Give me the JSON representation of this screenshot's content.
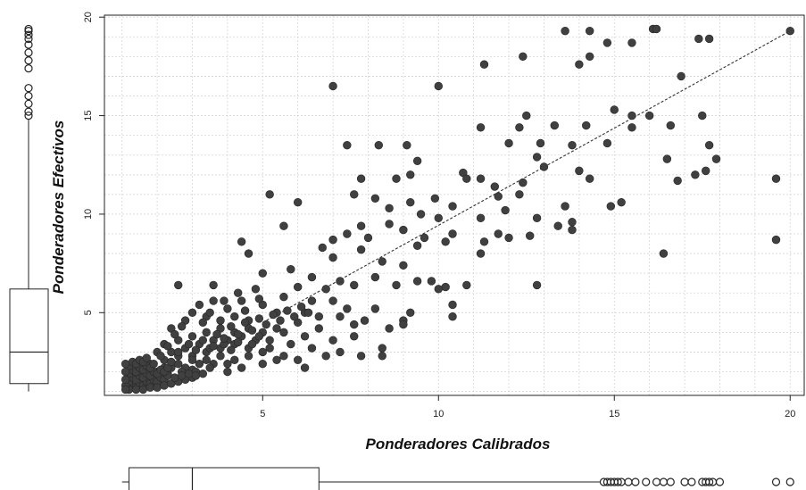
{
  "chart_data": {
    "type": "scatter",
    "title": "",
    "xlabel": "Ponderadores Calibrados",
    "ylabel": "Ponderadores Efectivos",
    "xlim": [
      0.5,
      20.4
    ],
    "ylim": [
      0.8,
      20.1
    ],
    "xticks": [
      5,
      10,
      15,
      20
    ],
    "yticks": [
      5,
      10,
      15,
      20
    ],
    "grid": true,
    "reference_line": {
      "style": "dashed",
      "from": [
        5,
        4.5
      ],
      "to": [
        20,
        19.3
      ]
    },
    "points": [
      [
        13.6,
        19.3
      ],
      [
        14.3,
        19.3
      ],
      [
        16.1,
        19.4
      ],
      [
        16.2,
        19.4
      ],
      [
        20,
        19.3
      ],
      [
        17.4,
        18.9
      ],
      [
        17.7,
        18.9
      ],
      [
        14.8,
        18.7
      ],
      [
        15.5,
        18.7
      ],
      [
        14.3,
        18.0
      ],
      [
        12.4,
        18.0
      ],
      [
        11.3,
        17.6
      ],
      [
        14.0,
        17.6
      ],
      [
        16.9,
        17.0
      ],
      [
        7.0,
        16.5
      ],
      [
        10.0,
        16.5
      ],
      [
        15.0,
        15.3
      ],
      [
        12.5,
        15.0
      ],
      [
        15.5,
        15.0
      ],
      [
        16.0,
        15.0
      ],
      [
        17.5,
        15.0
      ],
      [
        11.2,
        14.4
      ],
      [
        12.3,
        14.4
      ],
      [
        13.3,
        14.5
      ],
      [
        14.2,
        14.5
      ],
      [
        15.5,
        14.4
      ],
      [
        16.6,
        14.5
      ],
      [
        12.0,
        13.6
      ],
      [
        12.9,
        13.6
      ],
      [
        13.8,
        13.5
      ],
      [
        14.8,
        13.6
      ],
      [
        7.4,
        13.5
      ],
      [
        8.3,
        13.5
      ],
      [
        9.1,
        13.5
      ],
      [
        17.7,
        13.5
      ],
      [
        12.8,
        12.9
      ],
      [
        16.5,
        12.8
      ],
      [
        17.9,
        12.8
      ],
      [
        9.4,
        12.7
      ],
      [
        13.0,
        12.4
      ],
      [
        14.0,
        12.2
      ],
      [
        17.6,
        12.2
      ],
      [
        17.3,
        12.0
      ],
      [
        7.8,
        11.8
      ],
      [
        8.8,
        11.8
      ],
      [
        9.2,
        12.0
      ],
      [
        10.7,
        12.1
      ],
      [
        11.2,
        11.8
      ],
      [
        12.4,
        11.6
      ],
      [
        14.3,
        11.8
      ],
      [
        16.8,
        11.7
      ],
      [
        19.6,
        11.8
      ],
      [
        5.2,
        11.0
      ],
      [
        7.6,
        11.0
      ],
      [
        8.2,
        10.8
      ],
      [
        11.7,
        10.9
      ],
      [
        6.0,
        10.6
      ],
      [
        8.6,
        10.3
      ],
      [
        9.2,
        10.6
      ],
      [
        10.4,
        10.4
      ],
      [
        11.9,
        10.2
      ],
      [
        14.9,
        10.4
      ],
      [
        15.2,
        10.6
      ],
      [
        9.9,
        10.8
      ],
      [
        10.8,
        11.8
      ],
      [
        11.6,
        11.4
      ],
      [
        12.3,
        11.0
      ],
      [
        13.6,
        10.4
      ],
      [
        9.5,
        10.0
      ],
      [
        10.0,
        9.8
      ],
      [
        11.2,
        9.8
      ],
      [
        12.8,
        9.8
      ],
      [
        13.8,
        9.6
      ],
      [
        5.6,
        9.4
      ],
      [
        7.8,
        9.4
      ],
      [
        8.6,
        9.5
      ],
      [
        9.0,
        9.2
      ],
      [
        10.4,
        9.0
      ],
      [
        11.7,
        9.0
      ],
      [
        12.0,
        8.8
      ],
      [
        13.4,
        9.4
      ],
      [
        13.8,
        9.2
      ],
      [
        7.0,
        8.7
      ],
      [
        7.4,
        9.0
      ],
      [
        8.0,
        8.8
      ],
      [
        9.6,
        8.8
      ],
      [
        10.2,
        8.6
      ],
      [
        11.3,
        8.6
      ],
      [
        12.6,
        8.9
      ],
      [
        4.4,
        8.6
      ],
      [
        6.7,
        8.3
      ],
      [
        7.8,
        8.2
      ],
      [
        9.4,
        8.4
      ],
      [
        11.2,
        8.0
      ],
      [
        16.4,
        8.0
      ],
      [
        19.6,
        8.7
      ],
      [
        4.6,
        8.0
      ],
      [
        7.0,
        7.8
      ],
      [
        8.4,
        7.6
      ],
      [
        9.0,
        7.4
      ],
      [
        5.8,
        7.2
      ],
      [
        5.0,
        7.0
      ],
      [
        6.4,
        6.8
      ],
      [
        7.2,
        6.6
      ],
      [
        8.2,
        6.8
      ],
      [
        9.4,
        6.6
      ],
      [
        10.2,
        6.3
      ],
      [
        10.8,
        6.4
      ],
      [
        6.0,
        6.3
      ],
      [
        6.8,
        6.2
      ],
      [
        7.6,
        6.4
      ],
      [
        8.8,
        6.4
      ],
      [
        9.8,
        6.6
      ],
      [
        10.0,
        6.2
      ],
      [
        12.8,
        6.4
      ],
      [
        2.6,
        6.4
      ],
      [
        3.6,
        6.4
      ],
      [
        4.8,
        6.2
      ],
      [
        5.6,
        5.8
      ],
      [
        6.4,
        5.6
      ],
      [
        7.0,
        5.6
      ],
      [
        7.4,
        5.2
      ],
      [
        8.2,
        5.2
      ],
      [
        9.2,
        5.0
      ],
      [
        10.4,
        5.4
      ],
      [
        5.0,
        5.4
      ],
      [
        5.4,
        5.0
      ],
      [
        6.2,
        5.0
      ],
      [
        6.6,
        4.8
      ],
      [
        7.2,
        4.8
      ],
      [
        7.9,
        4.6
      ],
      [
        9.0,
        4.6
      ],
      [
        10.4,
        4.8
      ],
      [
        6.0,
        4.5
      ],
      [
        6.6,
        4.2
      ],
      [
        7.6,
        4.4
      ],
      [
        8.6,
        4.2
      ],
      [
        9.0,
        4.4
      ],
      [
        5.6,
        4.0
      ],
      [
        6.2,
        3.8
      ],
      [
        7.0,
        3.6
      ],
      [
        7.6,
        3.8
      ],
      [
        5.8,
        3.4
      ],
      [
        6.4,
        3.2
      ],
      [
        7.2,
        3.0
      ],
      [
        8.4,
        3.2
      ],
      [
        5.2,
        3.2
      ],
      [
        5.6,
        2.8
      ],
      [
        6.0,
        2.6
      ],
      [
        6.8,
        2.8
      ],
      [
        7.8,
        2.8
      ],
      [
        8.4,
        2.8
      ],
      [
        6.2,
        2.2
      ],
      [
        4.0,
        2.0
      ],
      [
        4.4,
        2.2
      ],
      [
        5.0,
        2.4
      ],
      [
        5.4,
        2.6
      ],
      [
        3.0,
        2.1
      ],
      [
        2.4,
        4.2
      ],
      [
        2.8,
        4.6
      ],
      [
        3.0,
        5.0
      ],
      [
        3.2,
        5.4
      ],
      [
        3.6,
        5.6
      ],
      [
        4.0,
        5.2
      ],
      [
        4.4,
        5.6
      ],
      [
        3.4,
        4.8
      ],
      [
        3.8,
        4.6
      ],
      [
        4.2,
        4.8
      ],
      [
        4.6,
        4.6
      ],
      [
        2.2,
        3.4
      ],
      [
        2.6,
        3.6
      ],
      [
        3.0,
        3.8
      ],
      [
        3.4,
        4.0
      ],
      [
        3.8,
        4.2
      ],
      [
        4.2,
        4.0
      ],
      [
        4.6,
        4.2
      ],
      [
        5.0,
        4.0
      ],
      [
        2.0,
        3.0
      ],
      [
        2.4,
        3.0
      ],
      [
        2.8,
        3.2
      ],
      [
        3.2,
        3.4
      ],
      [
        3.6,
        3.6
      ],
      [
        4.0,
        3.6
      ],
      [
        4.4,
        3.8
      ],
      [
        4.8,
        3.6
      ],
      [
        2.2,
        2.6
      ],
      [
        2.6,
        2.8
      ],
      [
        3.0,
        2.8
      ],
      [
        3.4,
        3.0
      ],
      [
        3.8,
        3.2
      ],
      [
        4.2,
        3.4
      ],
      [
        4.6,
        3.2
      ],
      [
        5.0,
        3.0
      ],
      [
        1.8,
        2.4
      ],
      [
        2.2,
        2.2
      ],
      [
        2.6,
        2.4
      ],
      [
        3.0,
        2.6
      ],
      [
        3.4,
        2.6
      ],
      [
        3.8,
        2.8
      ],
      [
        4.2,
        2.6
      ],
      [
        4.6,
        2.8
      ],
      [
        1.6,
        2.0
      ],
      [
        2.0,
        2.0
      ],
      [
        2.4,
        2.2
      ],
      [
        2.8,
        2.2
      ],
      [
        3.2,
        2.4
      ],
      [
        3.6,
        2.4
      ],
      [
        4.0,
        2.4
      ],
      [
        1.5,
        1.8
      ],
      [
        1.9,
        1.8
      ],
      [
        2.3,
        1.9
      ],
      [
        2.7,
        2.0
      ],
      [
        3.1,
        2.0
      ],
      [
        3.5,
        2.2
      ],
      [
        1.2,
        1.2
      ],
      [
        1.3,
        1.3
      ],
      [
        1.4,
        1.2
      ],
      [
        1.5,
        1.4
      ],
      [
        1.6,
        1.3
      ],
      [
        1.7,
        1.5
      ],
      [
        1.8,
        1.4
      ],
      [
        1.9,
        1.6
      ],
      [
        2.0,
        1.5
      ],
      [
        2.1,
        1.7
      ],
      [
        2.2,
        1.6
      ],
      [
        2.3,
        1.8
      ],
      [
        1.2,
        1.5
      ],
      [
        1.3,
        1.7
      ],
      [
        1.4,
        1.6
      ],
      [
        1.5,
        1.8
      ],
      [
        1.6,
        1.7
      ],
      [
        1.7,
        1.9
      ],
      [
        1.8,
        1.8
      ],
      [
        1.9,
        2.0
      ],
      [
        2.0,
        1.9
      ],
      [
        2.1,
        2.1
      ],
      [
        2.2,
        2.0
      ],
      [
        2.3,
        2.2
      ],
      [
        1.2,
        1.9
      ],
      [
        1.3,
        2.1
      ],
      [
        1.4,
        2.0
      ],
      [
        1.5,
        2.2
      ],
      [
        1.6,
        2.1
      ],
      [
        1.7,
        2.3
      ],
      [
        1.8,
        2.2
      ],
      [
        1.9,
        2.4
      ],
      [
        1.2,
        2.3
      ],
      [
        1.3,
        2.5
      ],
      [
        1.4,
        2.4
      ],
      [
        1.5,
        2.6
      ],
      [
        1.6,
        2.5
      ],
      [
        1.7,
        2.7
      ],
      [
        1.2,
        1.1
      ],
      [
        1.4,
        1.1
      ],
      [
        1.6,
        1.1
      ],
      [
        1.8,
        1.2
      ],
      [
        2.0,
        1.2
      ],
      [
        2.2,
        1.3
      ],
      [
        2.4,
        1.4
      ],
      [
        2.6,
        1.5
      ],
      [
        2.8,
        1.6
      ],
      [
        3.0,
        1.7
      ],
      [
        2.5,
        1.7
      ],
      [
        2.7,
        1.8
      ],
      [
        2.9,
        1.9
      ],
      [
        3.1,
        1.8
      ],
      [
        3.3,
        1.9
      ],
      [
        1.1,
        1.3
      ],
      [
        1.1,
        1.6
      ],
      [
        1.1,
        2.0
      ],
      [
        1.1,
        2.4
      ],
      [
        1.1,
        1.1
      ],
      [
        2.4,
        2.5
      ],
      [
        2.6,
        3.0
      ],
      [
        2.9,
        3.4
      ],
      [
        3.1,
        3.1
      ],
      [
        3.3,
        3.6
      ],
      [
        3.5,
        3.2
      ],
      [
        3.7,
        3.9
      ],
      [
        3.9,
        3.4
      ],
      [
        4.1,
        4.3
      ],
      [
        4.3,
        3.9
      ],
      [
        4.5,
        4.5
      ],
      [
        4.7,
        4.1
      ],
      [
        4.9,
        4.7
      ],
      [
        5.1,
        4.4
      ],
      [
        5.3,
        4.9
      ],
      [
        5.5,
        4.6
      ],
      [
        5.7,
        5.1
      ],
      [
        5.9,
        4.8
      ],
      [
        6.1,
        5.3
      ],
      [
        6.3,
        5.0
      ],
      [
        2.1,
        2.8
      ],
      [
        2.3,
        3.3
      ],
      [
        2.5,
        3.9
      ],
      [
        2.7,
        4.3
      ],
      [
        3.3,
        4.5
      ],
      [
        3.5,
        5.0
      ],
      [
        3.9,
        5.6
      ],
      [
        4.3,
        6.0
      ],
      [
        4.5,
        5.1
      ],
      [
        4.9,
        5.7
      ],
      [
        3.6,
        3.3
      ],
      [
        3.9,
        3.7
      ],
      [
        4.1,
        3.1
      ],
      [
        4.3,
        3.5
      ],
      [
        4.7,
        3.4
      ],
      [
        4.9,
        3.8
      ],
      [
        5.2,
        3.6
      ],
      [
        5.4,
        4.2
      ]
    ],
    "x_boxplot": {
      "q1": 1.2,
      "median": 3.0,
      "q3": 6.6,
      "whisker_low": 1.0,
      "whisker_high": 14.6,
      "outliers": [
        14.7,
        14.8,
        14.9,
        15.0,
        15.1,
        15.2,
        15.4,
        15.6,
        15.9,
        16.2,
        16.4,
        16.6,
        17.0,
        17.2,
        17.5,
        17.6,
        17.7,
        17.8,
        18.0,
        19.6,
        20.0
      ]
    },
    "y_boxplot": {
      "q1": 1.4,
      "median": 3.0,
      "q3": 6.2,
      "whisker_low": 1.0,
      "whisker_high": 14.8,
      "outliers": [
        15.0,
        15.2,
        15.6,
        16.0,
        16.4,
        17.4,
        17.8,
        18.2,
        18.6,
        18.9,
        19.1,
        19.3,
        19.4
      ]
    }
  }
}
